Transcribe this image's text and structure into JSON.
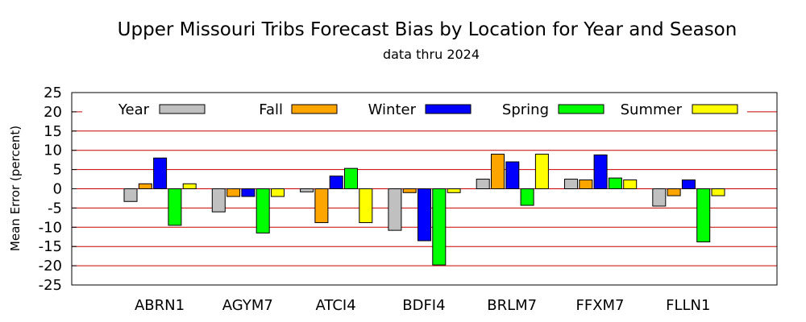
{
  "chart_data": {
    "type": "bar",
    "title": "Upper Missouri Tribs Forecast Bias by Location for Year and Season",
    "subtitle": "data thru 2024",
    "xlabel": "",
    "ylabel": "Mean Error (percent)",
    "ylim": [
      -25,
      25
    ],
    "yticks": [
      25,
      20,
      15,
      10,
      5,
      0,
      -5,
      -10,
      -15,
      -20,
      -25
    ],
    "ytick_labels": [
      "25",
      "20",
      "15",
      "10",
      "5",
      "0",
      "-5",
      "-10",
      "-15",
      "-20",
      "-25"
    ],
    "grid": true,
    "grid_color": "#cc0000",
    "legend_position": "top",
    "categories": [
      "ABRN1",
      "AGYM7",
      "ATCI4",
      "BDFI4",
      "BRLM7",
      "FFXM7",
      "FLLN1"
    ],
    "series": [
      {
        "name": "Year",
        "color": "#c0c0c0",
        "values": [
          -3.3,
          -6.0,
          -0.8,
          -10.8,
          2.5,
          2.5,
          -4.5
        ]
      },
      {
        "name": "Fall",
        "color": "#ffa500",
        "values": [
          1.3,
          -2.0,
          -8.8,
          -1.0,
          9.0,
          2.3,
          -1.8
        ]
      },
      {
        "name": "Winter",
        "color": "#0000ff",
        "values": [
          8.0,
          -2.0,
          3.3,
          -13.5,
          7.0,
          8.8,
          2.3
        ]
      },
      {
        "name": "Spring",
        "color": "#00ff00",
        "values": [
          -9.5,
          -11.5,
          5.3,
          -19.8,
          -4.3,
          2.8,
          -13.8
        ]
      },
      {
        "name": "Summer",
        "color": "#ffff00",
        "values": [
          1.3,
          -2.0,
          -8.8,
          -1.0,
          9.0,
          2.3,
          -1.8
        ]
      }
    ]
  }
}
